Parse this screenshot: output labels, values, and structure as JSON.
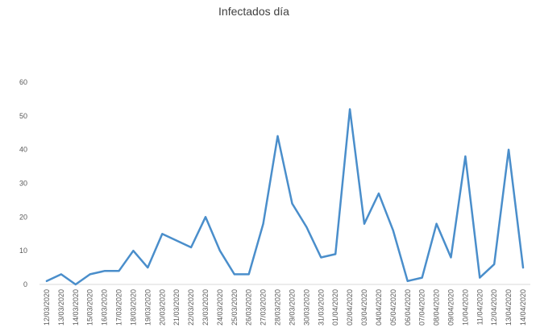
{
  "chart_data": {
    "type": "line",
    "title": "Infectados día",
    "xlabel": "",
    "ylabel": "",
    "ylim": [
      0,
      60
    ],
    "yticks": [
      0,
      10,
      20,
      30,
      40,
      50,
      60
    ],
    "grid": false,
    "legend": "none",
    "line_color": "#4a8ecb",
    "x": [
      "12/03/2020",
      "13/03/2020",
      "14/03/2020",
      "15/03/2020",
      "16/03/2020",
      "17/03/2020",
      "18/03/2020",
      "19/03/2020",
      "20/03/2020",
      "21/03/2020",
      "22/03/2020",
      "23/03/2020",
      "24/03/2020",
      "25/03/2020",
      "26/03/2020",
      "27/03/2020",
      "28/03/2020",
      "29/03/2020",
      "30/03/2020",
      "31/03/2020",
      "01/04/2020",
      "02/04/2020",
      "03/04/2020",
      "04/04/2020",
      "05/04/2020",
      "06/04/2020",
      "07/04/2020",
      "08/04/2020",
      "09/04/2020",
      "10/04/2020",
      "11/04/2020",
      "12/04/2020",
      "13/04/2020",
      "14/04/2020"
    ],
    "series": [
      {
        "values": [
          1,
          3,
          0,
          3,
          4,
          4,
          10,
          5,
          15,
          13,
          11,
          20,
          10,
          3,
          3,
          18,
          44,
          24,
          17,
          8,
          9,
          52,
          18,
          27,
          16,
          1,
          2,
          18,
          8,
          38,
          2,
          6,
          40,
          5
        ]
      }
    ]
  }
}
